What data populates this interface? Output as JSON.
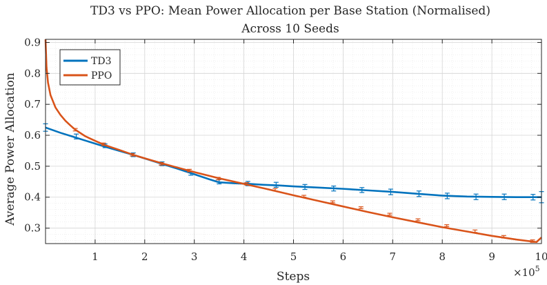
{
  "chart_data": {
    "type": "line",
    "title": "TD3 vs PPO: Mean Power Allocation per Base Station (Normalised)",
    "subtitle": "Across 10 Seeds",
    "xlabel": "Steps",
    "ylabel": "Average Power Allocation",
    "x_exponent_label": "×10",
    "x_exponent_power": "5",
    "xlim": [
      0,
      10
    ],
    "ylim": [
      0.25,
      0.91
    ],
    "xticks": [
      1,
      2,
      3,
      4,
      5,
      6,
      7,
      8,
      9,
      10
    ],
    "xtick_labels": [
      "1",
      "2",
      "3",
      "4",
      "5",
      "6",
      "7",
      "8",
      "9",
      "10"
    ],
    "yticks": [
      0.3,
      0.4,
      0.5,
      0.6,
      0.7,
      0.8,
      0.9
    ],
    "ytick_labels": [
      "0.3",
      "0.4",
      "0.5",
      "0.6",
      "0.7",
      "0.8",
      "0.9"
    ],
    "grid": true,
    "minor_grid": true,
    "legend_position": "top-left",
    "series": [
      {
        "name": "TD3",
        "color": "#0072BD",
        "x": [
          0,
          0.3,
          0.6,
          0.9,
          1.2,
          1.5,
          1.8,
          2.1,
          2.4,
          2.7,
          3.0,
          3.3,
          3.5,
          3.8,
          4.1,
          4.4,
          4.7,
          5.0,
          5.5,
          6.0,
          6.5,
          7.0,
          7.5,
          8.0,
          8.5,
          9.0,
          9.5,
          10.0
        ],
        "values": [
          0.625,
          0.608,
          0.593,
          0.578,
          0.563,
          0.549,
          0.535,
          0.52,
          0.505,
          0.49,
          0.474,
          0.458,
          0.448,
          0.445,
          0.443,
          0.44,
          0.438,
          0.435,
          0.431,
          0.427,
          0.422,
          0.417,
          0.411,
          0.405,
          0.402,
          0.401,
          0.4,
          0.4
        ],
        "error_x": [
          0,
          0.62,
          1.2,
          1.77,
          2.35,
          2.93,
          3.5,
          4.08,
          4.65,
          5.23,
          5.81,
          6.38,
          6.96,
          7.53,
          8.1,
          8.68,
          9.25,
          9.83,
          10
        ],
        "error_y": [
          0.625,
          0.596,
          0.566,
          0.537,
          0.508,
          0.477,
          0.45,
          0.444,
          0.44,
          0.433,
          0.428,
          0.423,
          0.417,
          0.411,
          0.404,
          0.401,
          0.401,
          0.4,
          0.4
        ],
        "error_half": [
          0.012,
          0.008,
          0.006,
          0.006,
          0.006,
          0.006,
          0.007,
          0.007,
          0.008,
          0.008,
          0.008,
          0.008,
          0.009,
          0.009,
          0.009,
          0.009,
          0.009,
          0.009,
          0.018
        ]
      },
      {
        "name": "PPO",
        "color": "#D95319",
        "x": [
          0,
          0.02,
          0.05,
          0.1,
          0.15,
          0.2,
          0.3,
          0.4,
          0.5,
          0.6,
          0.8,
          1.0,
          1.2,
          1.5,
          1.8,
          2.1,
          2.4,
          2.7,
          3.0,
          3.5,
          4.0,
          4.5,
          5.0,
          5.5,
          6.0,
          6.5,
          7.0,
          7.5,
          8.0,
          8.5,
          9.0,
          9.5,
          9.9,
          10.0
        ],
        "values": [
          0.91,
          0.82,
          0.77,
          0.73,
          0.71,
          0.69,
          0.666,
          0.647,
          0.632,
          0.618,
          0.597,
          0.582,
          0.568,
          0.552,
          0.535,
          0.521,
          0.507,
          0.494,
          0.481,
          0.461,
          0.443,
          0.425,
          0.406,
          0.388,
          0.37,
          0.352,
          0.335,
          0.319,
          0.303,
          0.289,
          0.275,
          0.263,
          0.255,
          0.27
        ],
        "error_x": [
          0.6,
          1.17,
          1.75,
          2.33,
          2.9,
          3.48,
          4.06,
          4.63,
          5.21,
          5.79,
          6.36,
          6.94,
          7.51,
          8.09,
          8.66,
          9.24,
          9.82
        ],
        "error_y": [
          0.618,
          0.571,
          0.537,
          0.508,
          0.486,
          0.46,
          0.443,
          0.424,
          0.403,
          0.385,
          0.366,
          0.345,
          0.327,
          0.308,
          0.29,
          0.272,
          0.258
        ],
        "error_half": [
          0.004,
          0.004,
          0.004,
          0.004,
          0.004,
          0.004,
          0.004,
          0.004,
          0.003,
          0.003,
          0.003,
          0.003,
          0.003,
          0.003,
          0.004,
          0.004,
          0.004
        ]
      }
    ]
  }
}
